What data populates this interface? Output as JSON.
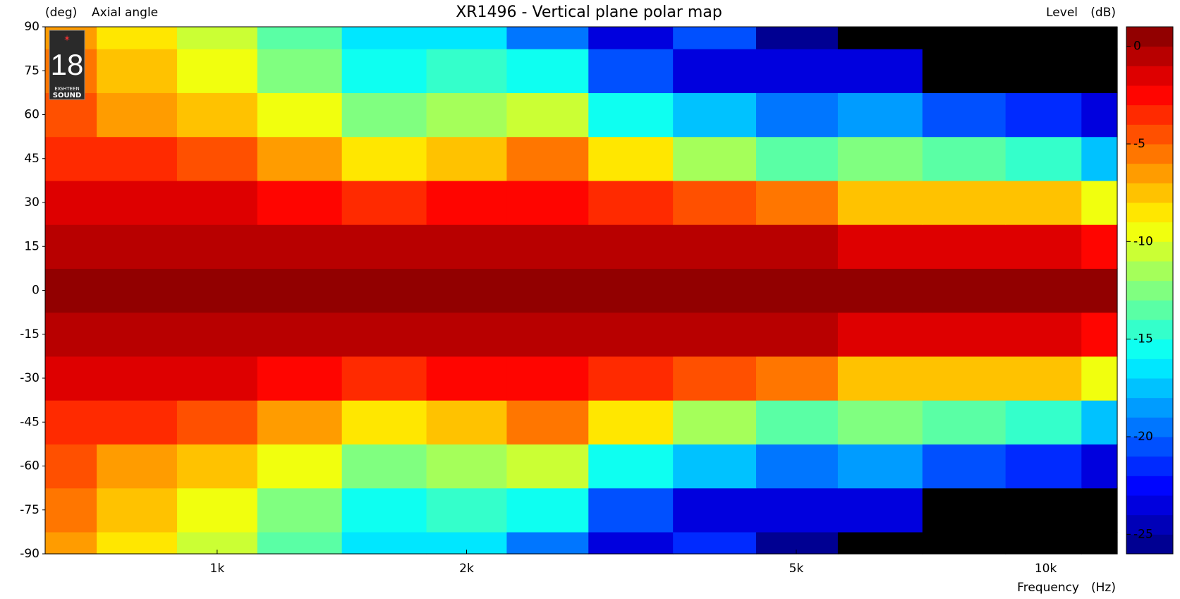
{
  "chart_data": {
    "type": "contour",
    "title": "XR1496 - Vertical plane polar map",
    "ylabel_unit": "(deg)",
    "ylabel": "Axial angle",
    "xlabel": "Frequency",
    "xlabel_unit": "(Hz)",
    "colorbar_label": "Level",
    "colorbar_unit": "(dB)",
    "logo": {
      "number": "18",
      "line1": "EIGHTEEN",
      "line2": "SOUND"
    },
    "xscale": "log",
    "xlim": [
      620,
      12200
    ],
    "xticks": [
      {
        "value": 1000,
        "label": "1k"
      },
      {
        "value": 2000,
        "label": "2k"
      },
      {
        "value": 5000,
        "label": "5k"
      },
      {
        "value": 10000,
        "label": "10k"
      }
    ],
    "ylim": [
      -90,
      90
    ],
    "yticks": [
      90,
      75,
      60,
      45,
      30,
      15,
      0,
      -15,
      -30,
      -45,
      -60,
      -75,
      -90
    ],
    "colormap": "jet",
    "level_step": 1,
    "under_color": "#000000",
    "clim": [
      -26,
      1
    ],
    "cticks": [
      0,
      -5,
      -10,
      -15,
      -20,
      -25
    ],
    "x": [
      640,
      800,
      1000,
      1250,
      1600,
      2000,
      2500,
      3150,
      4000,
      5000,
      6300,
      8000,
      10000,
      12200
    ],
    "y": [
      -90,
      -75,
      -60,
      -45,
      -30,
      -15,
      0,
      15,
      30,
      45,
      60,
      75,
      90
    ],
    "z": [
      [
        -7,
        -9,
        -11,
        -14,
        -17,
        -17,
        -20,
        -24,
        -22,
        -26,
        -27.5,
        -28,
        -28,
        -28
      ],
      [
        -6,
        -8,
        -10,
        -13,
        -16,
        -15,
        -16,
        -21,
        -24,
        -24,
        -24,
        -27.5,
        -28,
        -28
      ],
      [
        -5,
        -6.5,
        -8,
        -10,
        -13,
        -12,
        -11,
        -16,
        -18,
        -20,
        -19,
        -21,
        -22,
        -24
      ],
      [
        -3.5,
        -4,
        -5,
        -7,
        -9,
        -8,
        -6,
        -9,
        -12,
        -14,
        -13,
        -14,
        -15,
        -18
      ],
      [
        -2,
        -2,
        -2,
        -3,
        -4,
        -3,
        -2.5,
        -4,
        -5,
        -6,
        -8,
        -8,
        -8,
        -10
      ],
      [
        -0.3,
        -0.3,
        -0.5,
        -0.5,
        -1,
        -0.5,
        -0.5,
        -1,
        -1,
        -1,
        -1.5,
        -2,
        -2,
        -3
      ],
      [
        0,
        0,
        0,
        0,
        0,
        0,
        0,
        0,
        0,
        0,
        0,
        0,
        0,
        0
      ],
      [
        -0.3,
        -0.3,
        -0.5,
        -0.5,
        -1,
        -0.5,
        -0.5,
        -1,
        -1,
        -1,
        -1.5,
        -2,
        -2,
        -3
      ],
      [
        -2,
        -2,
        -2,
        -3,
        -4,
        -3,
        -2.5,
        -4,
        -5,
        -6,
        -8,
        -8,
        -8,
        -10
      ],
      [
        -3.5,
        -4,
        -5,
        -7,
        -9,
        -8,
        -6,
        -9,
        -12,
        -14,
        -13,
        -14,
        -15,
        -18
      ],
      [
        -5,
        -6.5,
        -8,
        -10,
        -13,
        -12,
        -11,
        -16,
        -18,
        -20,
        -19,
        -21,
        -22,
        -24
      ],
      [
        -6,
        -8,
        -10,
        -13,
        -16,
        -15,
        -16,
        -21,
        -24,
        -24,
        -24,
        -27.5,
        -28,
        -28
      ],
      [
        -7,
        -9,
        -11,
        -14,
        -17,
        -17,
        -20,
        -24,
        -21,
        -26,
        -27.5,
        -28,
        -28,
        -28
      ]
    ]
  }
}
